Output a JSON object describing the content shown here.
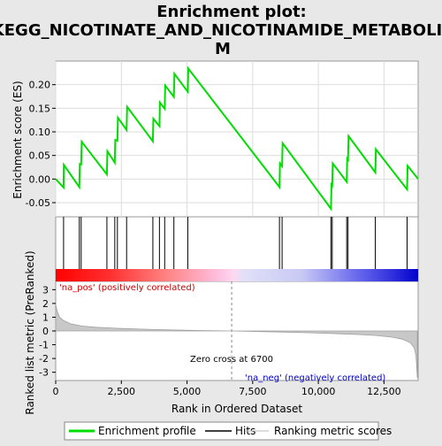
{
  "chart_data": {
    "type": "line",
    "title_lines": [
      "Enrichment plot:",
      "KEGG_NICOTINATE_AND_NICOTINAMIDE_METABOLIS",
      "M"
    ],
    "x_range": [
      0,
      13800
    ],
    "top_panel": {
      "ylabel": "Enrichment score (ES)",
      "ylim": [
        -0.08,
        0.25
      ],
      "yticks": [
        -0.05,
        0.0,
        0.05,
        0.1,
        0.15,
        0.2
      ],
      "ytick_labels": [
        "-0.05",
        "0.00",
        "0.05",
        "0.10",
        "0.15",
        "0.20"
      ],
      "series_name": "Enrichment profile",
      "series_color": "#00dd00",
      "points": [
        [
          0,
          0.0
        ],
        [
          300,
          -0.018
        ],
        [
          310,
          0.03
        ],
        [
          900,
          -0.017
        ],
        [
          920,
          0.032
        ],
        [
          970,
          0.031
        ],
        [
          990,
          0.079
        ],
        [
          1950,
          0.01
        ],
        [
          1970,
          0.059
        ],
        [
          2250,
          0.035
        ],
        [
          2270,
          0.083
        ],
        [
          2350,
          0.081
        ],
        [
          2370,
          0.13
        ],
        [
          2700,
          0.104
        ],
        [
          2720,
          0.153
        ],
        [
          3700,
          0.08
        ],
        [
          3720,
          0.128
        ],
        [
          3950,
          0.112
        ],
        [
          3970,
          0.162
        ],
        [
          4150,
          0.149
        ],
        [
          4170,
          0.198
        ],
        [
          4500,
          0.174
        ],
        [
          4520,
          0.223
        ],
        [
          5030,
          0.185
        ],
        [
          5050,
          0.234
        ],
        [
          8520,
          -0.017
        ],
        [
          8540,
          0.033
        ],
        [
          8620,
          0.027
        ],
        [
          8640,
          0.076
        ],
        [
          10480,
          -0.063
        ],
        [
          10500,
          -0.012
        ],
        [
          10530,
          -0.014
        ],
        [
          10550,
          0.033
        ],
        [
          11080,
          -0.006
        ],
        [
          11100,
          0.043
        ],
        [
          11130,
          0.041
        ],
        [
          11150,
          0.091
        ],
        [
          12170,
          0.014
        ],
        [
          12190,
          0.063
        ],
        [
          13380,
          -0.022
        ],
        [
          13400,
          0.028
        ],
        [
          13800,
          0.0
        ]
      ]
    },
    "hits": [
      300,
      900,
      970,
      1950,
      2250,
      2350,
      2700,
      3700,
      3950,
      4150,
      4500,
      5030,
      8520,
      8620,
      10480,
      10530,
      11080,
      11130,
      12170,
      13380
    ],
    "bottom_panel": {
      "ylabel": "Ranked list metric (PreRanked)",
      "xlabel": "Rank in Ordered Dataset",
      "ylim": [
        -3.6,
        3.6
      ],
      "yticks": [
        3,
        2,
        1,
        0,
        -1,
        -2,
        -3
      ],
      "ytick_labels": [
        "3",
        "2",
        "1",
        "0",
        "-1",
        "-2",
        "-3"
      ],
      "xticks": [
        0,
        2500,
        5000,
        7500,
        10000,
        12500
      ],
      "xtick_labels": [
        "0",
        "2,500",
        "5,000",
        "7,500",
        "10,000",
        "12,500"
      ],
      "metric_curve": [
        [
          0,
          1.9
        ],
        [
          60,
          1.4
        ],
        [
          150,
          1.0
        ],
        [
          300,
          0.75
        ],
        [
          600,
          0.5
        ],
        [
          1000,
          0.36
        ],
        [
          1500,
          0.27
        ],
        [
          2500,
          0.18
        ],
        [
          3500,
          0.12
        ],
        [
          4500,
          0.07
        ],
        [
          5500,
          0.03
        ],
        [
          6700,
          0.0
        ],
        [
          8000,
          -0.05
        ],
        [
          9500,
          -0.12
        ],
        [
          10500,
          -0.18
        ],
        [
          11500,
          -0.26
        ],
        [
          12200,
          -0.33
        ],
        [
          12800,
          -0.45
        ],
        [
          13200,
          -0.6
        ],
        [
          13500,
          -0.85
        ],
        [
          13650,
          -1.2
        ],
        [
          13720,
          -1.8
        ],
        [
          13770,
          -3.4
        ]
      ],
      "zero_cross_label": "Zero cross at 6700",
      "zero_cross_x": 6700,
      "pos_label": "'na_pos' (positively correlated)",
      "neg_label": "'na_neg' (negatively correlated)"
    },
    "legend": [
      {
        "label": "Enrichment profile",
        "color": "#00dd00"
      },
      {
        "label": "Hits",
        "color": "#000000"
      },
      {
        "label": "Ranking metric scores",
        "color": "#bbbbbb"
      }
    ]
  }
}
